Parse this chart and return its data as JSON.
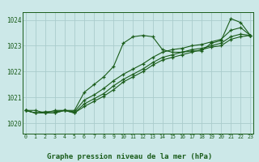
{
  "background_color": "#cce8e8",
  "grid_color": "#aacccc",
  "line_color": "#1a5c1a",
  "marker_color": "#1a5c1a",
  "title": "Graphe pression niveau de la mer (hPa)",
  "title_fontsize": 6.5,
  "ylim": [
    1019.6,
    1024.3
  ],
  "xlim": [
    -0.3,
    23.3
  ],
  "yticks": [
    1020,
    1021,
    1022,
    1023,
    1024
  ],
  "xticks": [
    0,
    1,
    2,
    3,
    4,
    5,
    6,
    7,
    8,
    9,
    10,
    11,
    12,
    13,
    14,
    15,
    16,
    17,
    18,
    19,
    20,
    21,
    22,
    23
  ],
  "series": [
    [
      1020.5,
      1020.5,
      1020.4,
      1020.5,
      1020.5,
      1020.5,
      1021.2,
      1021.5,
      1021.8,
      1022.2,
      1023.1,
      1023.35,
      1023.4,
      1023.35,
      1022.85,
      1022.75,
      1022.75,
      1022.8,
      1022.8,
      1023.1,
      1023.2,
      1024.05,
      1023.9,
      1023.4
    ],
    [
      1020.5,
      1020.4,
      1020.45,
      1020.45,
      1020.5,
      1020.45,
      1020.9,
      1021.1,
      1021.35,
      1021.65,
      1021.9,
      1022.1,
      1022.3,
      1022.55,
      1022.75,
      1022.85,
      1022.9,
      1023.0,
      1023.05,
      1023.15,
      1023.25,
      1023.6,
      1023.7,
      1023.4
    ],
    [
      1020.5,
      1020.4,
      1020.4,
      1020.4,
      1020.5,
      1020.4,
      1020.75,
      1020.95,
      1021.15,
      1021.45,
      1021.7,
      1021.9,
      1022.1,
      1022.35,
      1022.55,
      1022.65,
      1022.75,
      1022.85,
      1022.9,
      1023.0,
      1023.1,
      1023.35,
      1023.45,
      1023.4
    ],
    [
      1020.5,
      1020.4,
      1020.4,
      1020.4,
      1020.5,
      1020.4,
      1020.65,
      1020.85,
      1021.05,
      1021.3,
      1021.6,
      1021.8,
      1022.0,
      1022.25,
      1022.45,
      1022.55,
      1022.65,
      1022.75,
      1022.85,
      1022.95,
      1023.0,
      1023.25,
      1023.35,
      1023.4
    ]
  ]
}
